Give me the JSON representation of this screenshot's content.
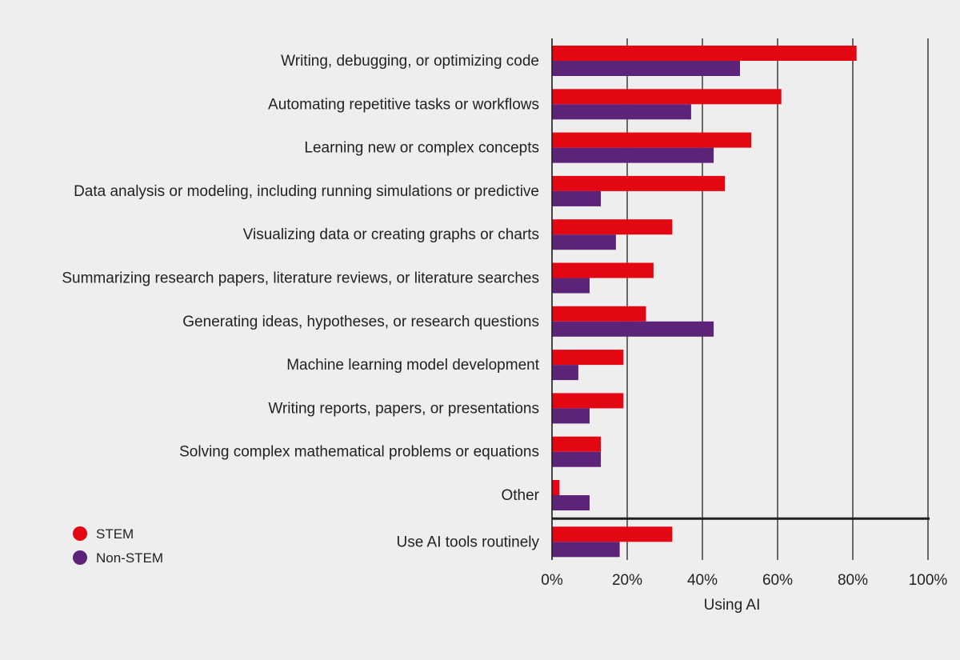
{
  "chart_data": {
    "type": "bar",
    "orientation": "horizontal",
    "categories": [
      "Writing, debugging, or optimizing code",
      "Automating repetitive tasks or workflows",
      "Learning new or complex concepts",
      "Data analysis or modeling, including running simulations or predictive",
      "Visualizing data or creating graphs or charts",
      "Summarizing research papers, literature reviews, or literature searches",
      "Generating ideas, hypotheses, or research questions",
      "Machine learning model development",
      "Writing reports, papers, or presentations",
      "Solving complex mathematical problems or equations",
      "Other",
      "Use AI tools routinely"
    ],
    "series": [
      {
        "name": "STEM",
        "color": "#e30613",
        "values": [
          81,
          61,
          53,
          46,
          32,
          27,
          25,
          19,
          19,
          13,
          2,
          32
        ]
      },
      {
        "name": "Non-STEM",
        "color": "#5c2379",
        "values": [
          50,
          37,
          43,
          13,
          17,
          10,
          43,
          7,
          10,
          13,
          10,
          18
        ]
      }
    ],
    "xlabel": "Using AI",
    "xlim": [
      0,
      100
    ],
    "x_ticks": [
      "0%",
      "20%",
      "40%",
      "60%",
      "80%",
      "100%"
    ],
    "grid": true,
    "legend_position": "bottom-left"
  }
}
